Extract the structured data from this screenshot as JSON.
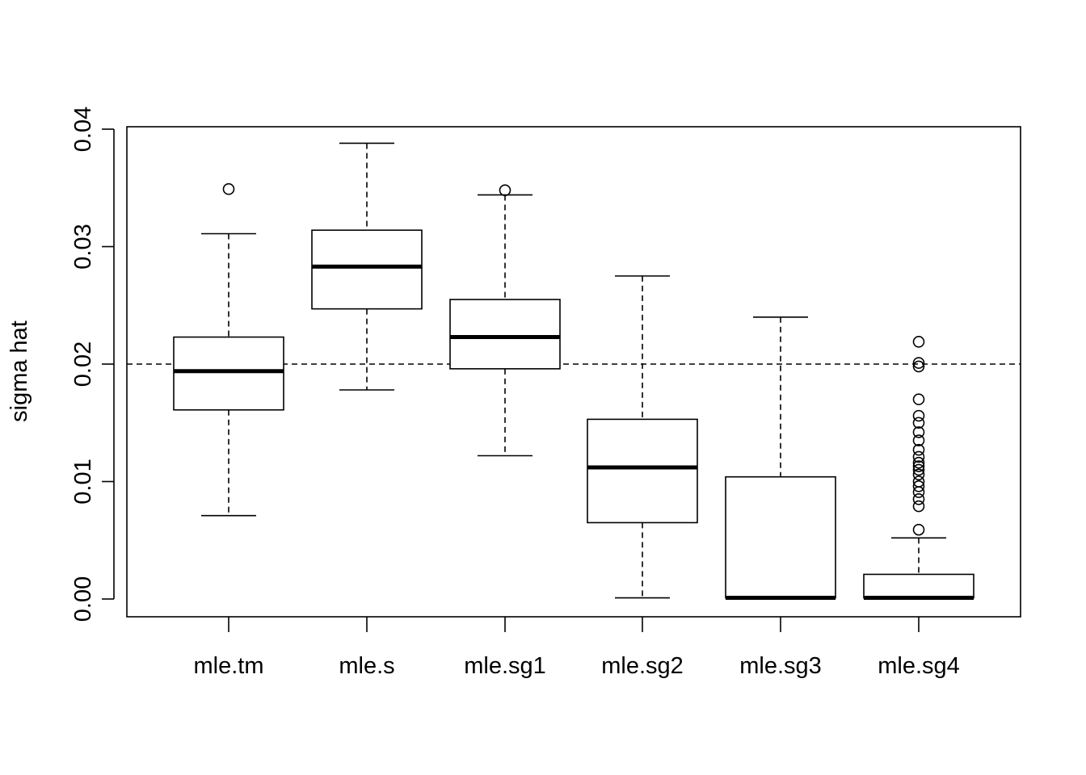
{
  "chart_data": {
    "type": "box",
    "title": "",
    "xlabel": "",
    "ylabel": "sigma hat",
    "ylim": [
      -0.0015,
      0.0401
    ],
    "yticks": [
      "0.00",
      "0.01",
      "0.02",
      "0.03",
      "0.04"
    ],
    "reference_line": 0.02,
    "grid": false,
    "categories": [
      "mle.tm",
      "mle.s",
      "mle.sg1",
      "mle.sg2",
      "mle.sg3",
      "mle.sg4"
    ],
    "boxes": [
      {
        "whisker_low": 0.0071,
        "q1": 0.0161,
        "median": 0.0194,
        "q3": 0.0223,
        "whisker_high": 0.0311,
        "outliers": [
          0.0349
        ]
      },
      {
        "whisker_low": 0.0178,
        "q1": 0.0247,
        "median": 0.0283,
        "q3": 0.0314,
        "whisker_high": 0.0388,
        "outliers": []
      },
      {
        "whisker_low": 0.0122,
        "q1": 0.0196,
        "median": 0.0223,
        "q3": 0.0255,
        "whisker_high": 0.0344,
        "outliers": [
          0.0348
        ]
      },
      {
        "whisker_low": 0.0001,
        "q1": 0.0065,
        "median": 0.0112,
        "q3": 0.0153,
        "whisker_high": 0.0275,
        "outliers": []
      },
      {
        "whisker_low": 0.0001,
        "q1": 0.0001,
        "median": 0.0001,
        "q3": 0.0104,
        "whisker_high": 0.024,
        "outliers": []
      },
      {
        "whisker_low": 0.0001,
        "q1": 0.0001,
        "median": 0.0001,
        "q3": 0.0021,
        "whisker_high": 0.0052,
        "outliers": [
          0.0059,
          0.0079,
          0.0085,
          0.0091,
          0.0096,
          0.01,
          0.0106,
          0.011,
          0.0113,
          0.0116,
          0.0121,
          0.0127,
          0.0135,
          0.0142,
          0.015,
          0.0156,
          0.017,
          0.0198,
          0.0201,
          0.0219
        ]
      }
    ]
  }
}
